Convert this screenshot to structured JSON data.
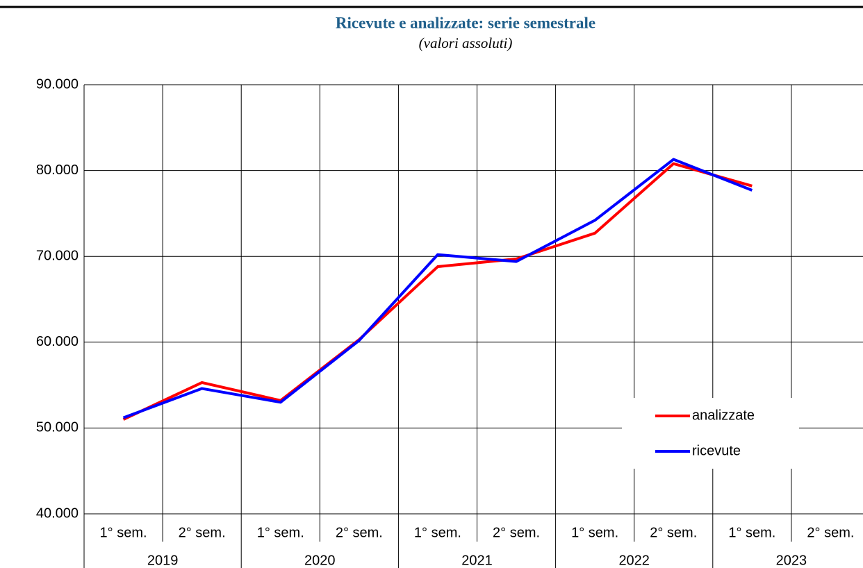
{
  "chart_data": {
    "type": "line",
    "title": "Ricevute e analizzate: serie semestrale",
    "subtitle": "(valori assoluti)",
    "categories": [
      "1° sem.",
      "2° sem.",
      "1° sem.",
      "2° sem.",
      "1° sem.",
      "2° sem.",
      "1° sem.",
      "2° sem.",
      "1° sem.",
      "2° sem."
    ],
    "category_groups": [
      "2019",
      "2020",
      "2021",
      "2022",
      "2023"
    ],
    "series": [
      {
        "name": "analizzate",
        "color": "#ff0000",
        "values": [
          51000,
          55300,
          53200,
          60300,
          68800,
          69700,
          72700,
          80800,
          78200,
          null
        ]
      },
      {
        "name": "ricevute",
        "color": "#0000ff",
        "values": [
          51200,
          54600,
          53000,
          60200,
          70200,
          69400,
          74200,
          81300,
          77700,
          null
        ]
      }
    ],
    "ylim": [
      40000,
      90000
    ],
    "yticks": [
      {
        "value": 40000,
        "label": "40.000"
      },
      {
        "value": 50000,
        "label": "50.000"
      },
      {
        "value": 60000,
        "label": "60.000"
      },
      {
        "value": 70000,
        "label": "70.000"
      },
      {
        "value": 80000,
        "label": "80.000"
      },
      {
        "value": 90000,
        "label": "90.000"
      }
    ],
    "grid": true,
    "legend": "bottom-right"
  }
}
